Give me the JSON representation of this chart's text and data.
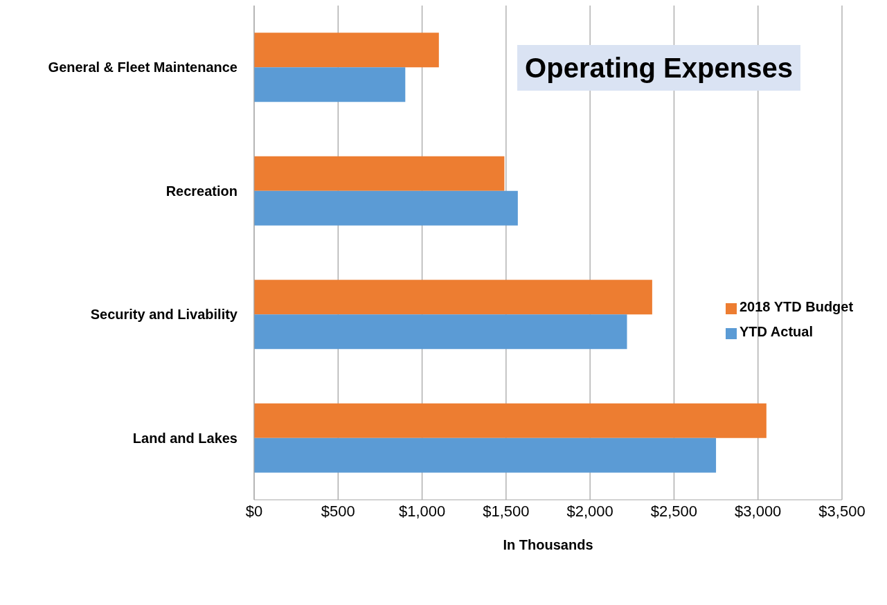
{
  "chart_data": {
    "type": "bar",
    "orientation": "horizontal",
    "title": "Operating Expenses",
    "xlabel": "In Thousands",
    "categories": [
      "General & Fleet Maintenance",
      "Recreation",
      "Security and Livability",
      "Land and Lakes"
    ],
    "series": [
      {
        "name": "2018 YTD Budget",
        "color": "#ed7d31",
        "values": [
          1100,
          1490,
          2370,
          3050
        ]
      },
      {
        "name": "YTD Actual",
        "color": "#5b9bd5",
        "values": [
          900,
          1570,
          2220,
          2750
        ]
      }
    ],
    "xlim": [
      0,
      3500
    ],
    "xticks": [
      {
        "value": 0,
        "label": "$0"
      },
      {
        "value": 500,
        "label": "$500"
      },
      {
        "value": 1000,
        "label": "$1,000"
      },
      {
        "value": 1500,
        "label": "$1,500"
      },
      {
        "value": 2000,
        "label": "$2,000"
      },
      {
        "value": 2500,
        "label": "$2,500"
      },
      {
        "value": 3000,
        "label": "$3,000"
      },
      {
        "value": 3500,
        "label": "$3,500"
      }
    ],
    "grid": "x",
    "legend": "right"
  }
}
